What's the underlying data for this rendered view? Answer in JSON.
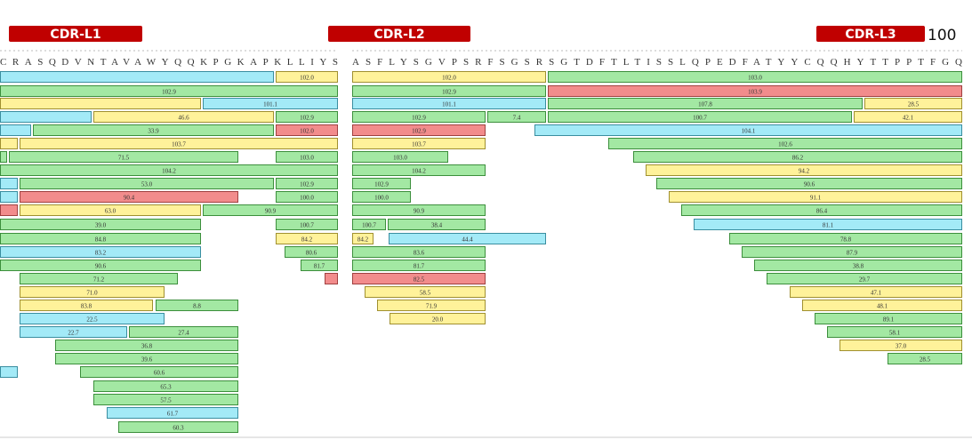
{
  "cdr_labels": [
    "CDR-L1",
    "CDR-L2",
    "CDR-L3"
  ],
  "position_label": "100",
  "sequences": [
    "CRASQDVNTAVAWYQQKPGKAPKLLIYS",
    "ASFLYSGVPSRFSGSRSGTDFTLTISSLQPEDFATYYCQQHYTTPPTFGQ"
  ],
  "peptide_labels": [
    "102.0",
    "102.9",
    "101.1",
    "46.6",
    "102.9",
    "33.9",
    "102.0",
    "103.7",
    "71.5",
    "103.0",
    "104.2",
    "53.0",
    "102.9",
    "90.4",
    "100.0",
    "63.0",
    "90.9",
    "39.0",
    "100.7",
    "84.8",
    "84.2",
    "83.2",
    "80.6",
    "90.6",
    "81.7",
    "71.2",
    "71.0",
    "83.8",
    "8.8",
    "22.5",
    "22.7",
    "27.4",
    "36.8",
    "39.6",
    "60.6",
    "65.3",
    "57.5",
    "61.7",
    "60.3",
    "102.0",
    "103.0",
    "102.9",
    "103.9",
    "101.1",
    "107.8",
    "28.5",
    "102.9",
    "7.4",
    "100.7",
    "42.1",
    "102.9",
    "104.1",
    "103.7",
    "102.6",
    "103.0",
    "86.2",
    "104.2",
    "94.2",
    "102.9",
    "90.6",
    "100.0",
    "91.1",
    "90.9",
    "86.4",
    "100.7",
    "38.4",
    "81.1",
    "84.2",
    "44.4",
    "78.8",
    "83.6",
    "87.9",
    "81.7",
    "38.8",
    "82.5",
    "29.7",
    "58.5",
    "47.1",
    "71.9",
    "48.1",
    "20.0",
    "89.1",
    "58.1",
    "37.0",
    "28.5"
  ]
}
